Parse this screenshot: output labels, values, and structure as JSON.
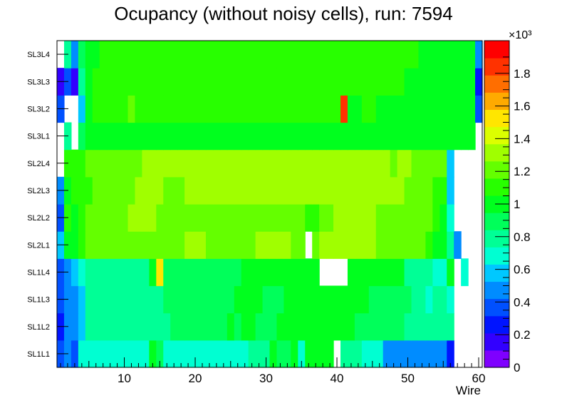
{
  "chart_data": {
    "type": "heatmap",
    "title": "Ocupancy (without noisy cells), run: 7594",
    "xlabel": "Wire",
    "ylabel": "",
    "xlim": [
      0.5,
      60.5
    ],
    "x_ticks": [
      "10",
      "20",
      "30",
      "40",
      "50",
      "60"
    ],
    "y_categories": [
      "SL1L1",
      "SL1L2",
      "SL1L3",
      "SL1L4",
      "SL2L1",
      "SL2L2",
      "SL2L3",
      "SL2L4",
      "SL3L1",
      "SL3L2",
      "SL3L3",
      "SL3L4"
    ],
    "colorbar": {
      "min": 0,
      "max": 2000,
      "ticks": [
        "0",
        "0.2",
        "0.4",
        "0.6",
        "0.8",
        "1",
        "1.2",
        "1.4",
        "1.6",
        "1.8"
      ],
      "exponent_label": "×10³",
      "palette": [
        "#7f00ff",
        "#3200ff",
        "#0014ff",
        "#0050ff",
        "#008cff",
        "#00c8ff",
        "#00ffd2",
        "#00ff96",
        "#00ff5a",
        "#00ff1e",
        "#28ff00",
        "#64ff00",
        "#a0ff00",
        "#dcff00",
        "#ffe600",
        "#ffaa00",
        "#ff6e00",
        "#ff3200",
        "#ff0000"
      ]
    },
    "rows": [
      {
        "layer": "SL1L1",
        "values": [
          350,
          430,
          350,
          650,
          650,
          650,
          650,
          650,
          650,
          650,
          650,
          650,
          650,
          1050,
          900,
          650,
          650,
          700,
          650,
          650,
          650,
          650,
          700,
          700,
          700,
          700,
          700,
          750,
          750,
          750,
          1000,
          850,
          850,
          1050,
          700,
          1000,
          1000,
          1050,
          1000,
          0,
          780,
          780,
          780,
          680,
          680,
          650,
          450,
          450,
          450,
          450,
          450,
          450,
          450,
          450,
          450,
          300,
          0,
          0,
          0,
          0
        ]
      },
      {
        "layer": "SL1L2",
        "values": [
          300,
          470,
          470,
          550,
          750,
          800,
          800,
          800,
          800,
          800,
          800,
          800,
          800,
          800,
          800,
          800,
          850,
          850,
          850,
          850,
          850,
          900,
          900,
          900,
          950,
          900,
          950,
          950,
          900,
          900,
          900,
          950,
          950,
          1000,
          1000,
          1000,
          1000,
          1000,
          950,
          950,
          950,
          950,
          900,
          900,
          900,
          900,
          900,
          900,
          900,
          800,
          800,
          750,
          750,
          750,
          750,
          750,
          0,
          0,
          0,
          0
        ]
      },
      {
        "layer": "SL1L3",
        "values": [
          350,
          470,
          500,
          580,
          750,
          800,
          800,
          800,
          800,
          800,
          800,
          800,
          800,
          800,
          800,
          850,
          850,
          850,
          850,
          850,
          850,
          900,
          900,
          900,
          900,
          950,
          950,
          950,
          950,
          900,
          900,
          900,
          950,
          950,
          1000,
          1000,
          1000,
          950,
          950,
          950,
          950,
          950,
          950,
          950,
          900,
          900,
          900,
          900,
          850,
          850,
          800,
          800,
          700,
          750,
          750,
          650,
          0,
          0,
          0,
          0
        ]
      },
      {
        "layer": "SL1L4",
        "values": [
          400,
          450,
          600,
          650,
          750,
          800,
          800,
          800,
          800,
          800,
          800,
          800,
          800,
          950,
          1500,
          900,
          850,
          850,
          850,
          850,
          850,
          900,
          900,
          900,
          900,
          900,
          950,
          950,
          950,
          950,
          950,
          950,
          1050,
          1050,
          1000,
          1000,
          1000,
          0,
          0,
          0,
          0,
          950,
          950,
          950,
          950,
          950,
          950,
          950,
          950,
          800,
          800,
          750,
          750,
          700,
          650,
          950,
          0,
          700,
          0,
          0
        ]
      },
      {
        "layer": "SL2L1",
        "values": [
          600,
          1000,
          1000,
          1100,
          1200,
          1250,
          1250,
          1250,
          1250,
          1250,
          1250,
          1250,
          1250,
          1250,
          1250,
          1250,
          1250,
          1250,
          1300,
          1300,
          1300,
          1250,
          1250,
          1250,
          1250,
          1250,
          1250,
          1250,
          1350,
          1300,
          1300,
          1300,
          1300,
          1250,
          1200,
          0,
          1200,
          1300,
          1300,
          1300,
          1300,
          1300,
          1300,
          1300,
          1300,
          1250,
          1250,
          1250,
          1250,
          1250,
          1250,
          1250,
          1150,
          1050,
          1000,
          800,
          450,
          0,
          0,
          0
        ]
      },
      {
        "layer": "SL2L2",
        "values": [
          400,
          1100,
          1050,
          1150,
          1200,
          1250,
          1250,
          1250,
          1250,
          1250,
          1300,
          1300,
          1300,
          1300,
          1250,
          1250,
          1250,
          1250,
          1250,
          1250,
          1250,
          1250,
          1250,
          1250,
          1250,
          1250,
          1250,
          1250,
          1250,
          1250,
          1250,
          1250,
          1250,
          1250,
          1250,
          1100,
          1100,
          1250,
          1250,
          1300,
          1300,
          1300,
          1300,
          1300,
          1300,
          1250,
          1250,
          1250,
          1250,
          1250,
          1200,
          1200,
          1200,
          1150,
          950,
          700,
          0,
          0,
          0,
          0
        ]
      },
      {
        "layer": "SL2L3",
        "values": [
          450,
          1050,
          1100,
          1100,
          1150,
          1200,
          1200,
          1250,
          1250,
          1250,
          1250,
          1300,
          1300,
          1300,
          1300,
          1250,
          1250,
          1250,
          1300,
          1300,
          1300,
          1300,
          1300,
          1300,
          1300,
          1300,
          1300,
          1300,
          1300,
          1300,
          1300,
          1300,
          1300,
          1300,
          1300,
          1300,
          1300,
          1300,
          1300,
          1300,
          1300,
          1300,
          1300,
          1300,
          1300,
          1300,
          1300,
          1300,
          1300,
          1250,
          1250,
          1200,
          1200,
          1150,
          1150,
          600,
          0,
          0,
          0,
          0
        ]
      },
      {
        "layer": "SL2L4",
        "values": [
          0,
          1100,
          1100,
          1150,
          1200,
          1200,
          1250,
          1250,
          1250,
          1250,
          1250,
          1250,
          1300,
          1300,
          1300,
          1300,
          1300,
          1300,
          1350,
          1300,
          1300,
          1300,
          1300,
          1300,
          1300,
          1300,
          1300,
          1300,
          1300,
          1300,
          1300,
          1300,
          1300,
          1300,
          1300,
          1300,
          1300,
          1300,
          1300,
          1300,
          1300,
          1300,
          1300,
          1300,
          1300,
          1300,
          1300,
          1200,
          1300,
          1300,
          1250,
          1200,
          1200,
          1200,
          1200,
          600,
          0,
          0,
          0,
          0
        ]
      },
      {
        "layer": "SL3L1",
        "values": [
          0,
          800,
          0,
          900,
          950,
          1000,
          950,
          950,
          950,
          950,
          950,
          950,
          1000,
          1000,
          1000,
          1000,
          1050,
          1050,
          1050,
          1050,
          1050,
          1050,
          1000,
          1050,
          1050,
          1000,
          1050,
          1050,
          1050,
          950,
          950,
          950,
          950,
          950,
          1000,
          1000,
          1000,
          1050,
          1050,
          1050,
          1050,
          1050,
          1050,
          1000,
          1000,
          1000,
          1000,
          1000,
          1000,
          1000,
          950,
          950,
          950,
          950,
          950,
          950,
          950,
          1050,
          1050,
          0
        ]
      },
      {
        "layer": "SL3L2",
        "values": [
          350,
          0,
          0,
          550,
          1050,
          1100,
          1100,
          1100,
          1100,
          1100,
          1200,
          1100,
          1100,
          1100,
          1100,
          1100,
          1100,
          1100,
          1100,
          1150,
          1150,
          1150,
          1150,
          1150,
          1150,
          1150,
          1150,
          1150,
          1150,
          1150,
          1150,
          1150,
          1100,
          1100,
          1100,
          1100,
          1100,
          1100,
          1100,
          1100,
          1850,
          1050,
          1050,
          1100,
          1100,
          1050,
          1050,
          1050,
          1050,
          1000,
          1000,
          950,
          950,
          950,
          950,
          950,
          950,
          950,
          950,
          400
        ]
      },
      {
        "layer": "SL3L3",
        "values": [
          150,
          350,
          150,
          800,
          1000,
          1100,
          1100,
          1100,
          1100,
          1100,
          1100,
          1100,
          1100,
          1100,
          1150,
          1150,
          1150,
          1150,
          1150,
          1100,
          1100,
          1100,
          1150,
          1150,
          1150,
          1150,
          1150,
          1150,
          1150,
          1150,
          1150,
          1150,
          1150,
          1150,
          1150,
          1150,
          1150,
          1150,
          1150,
          1150,
          1150,
          1150,
          1150,
          1100,
          1100,
          1100,
          1100,
          1100,
          1100,
          1050,
          1050,
          1000,
          1000,
          1000,
          1000,
          950,
          950,
          950,
          950,
          300
        ]
      },
      {
        "layer": "SL3L4",
        "values": [
          0,
          750,
          500,
          850,
          1000,
          1050,
          1100,
          1100,
          1100,
          1100,
          1100,
          1100,
          1100,
          1100,
          1150,
          1150,
          1150,
          1150,
          1150,
          1150,
          1150,
          1150,
          1150,
          1150,
          1150,
          1150,
          1150,
          1150,
          1150,
          1150,
          1150,
          1150,
          1150,
          1150,
          1150,
          1150,
          1150,
          1150,
          1150,
          1150,
          1150,
          1150,
          1150,
          1150,
          1100,
          1100,
          1100,
          1100,
          1100,
          1100,
          1100,
          1050,
          1050,
          1050,
          1000,
          950,
          950,
          950,
          950,
          500
        ]
      }
    ]
  }
}
